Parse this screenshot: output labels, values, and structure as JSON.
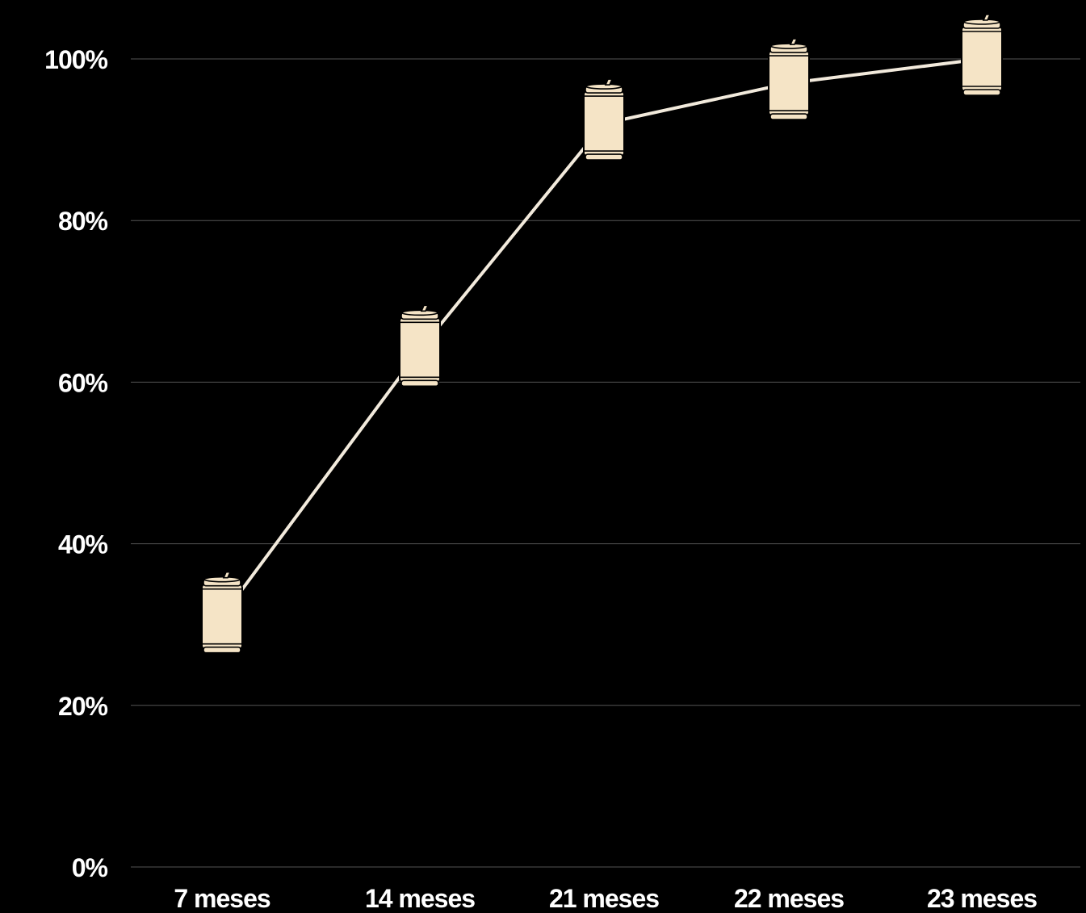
{
  "chart_data": {
    "type": "line",
    "categories": [
      "7 meses",
      "14 meses",
      "21 meses",
      "22 meses",
      "23 meses"
    ],
    "series": [
      {
        "values": [
          31,
          64,
          92,
          97,
          100
        ]
      }
    ],
    "y_ticks": [
      "0%",
      "20%",
      "40%",
      "60%",
      "80%",
      "100%"
    ],
    "ylim": [
      0,
      100
    ],
    "grid": true,
    "legend": "none",
    "marker": "can-icon",
    "colors": {
      "background": "#000000",
      "line": "#f2eadc",
      "marker_fill": "#f5e4c6",
      "grid": "#555555",
      "text": "#ffffff"
    }
  }
}
